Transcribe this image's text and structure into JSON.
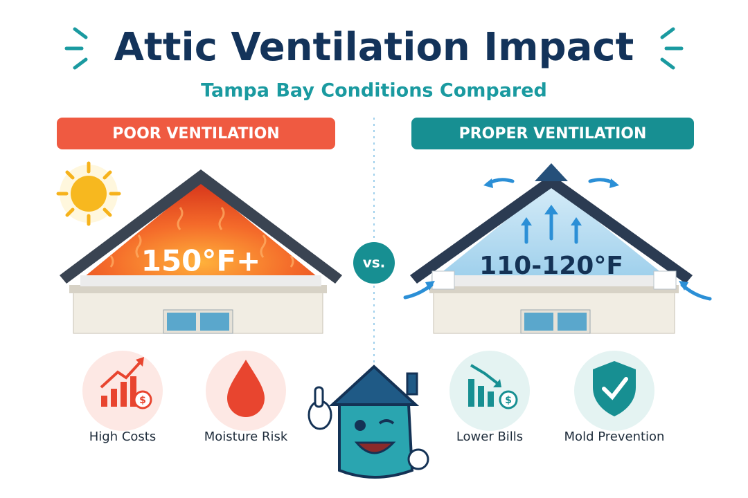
{
  "header": {
    "title": "Attic Ventilation Impact",
    "subtitle": "Tampa Bay Conditions Compared"
  },
  "panels": [
    {
      "label": "POOR VENTILATION",
      "temperature": "150°F+",
      "items": [
        "High Costs",
        "Moisture Risk"
      ]
    },
    {
      "label": "PROPER VENTILATION",
      "temperature": "110-120°F",
      "items": [
        "Lower Bills",
        "Mold Prevention"
      ]
    }
  ],
  "divider": "vs."
}
